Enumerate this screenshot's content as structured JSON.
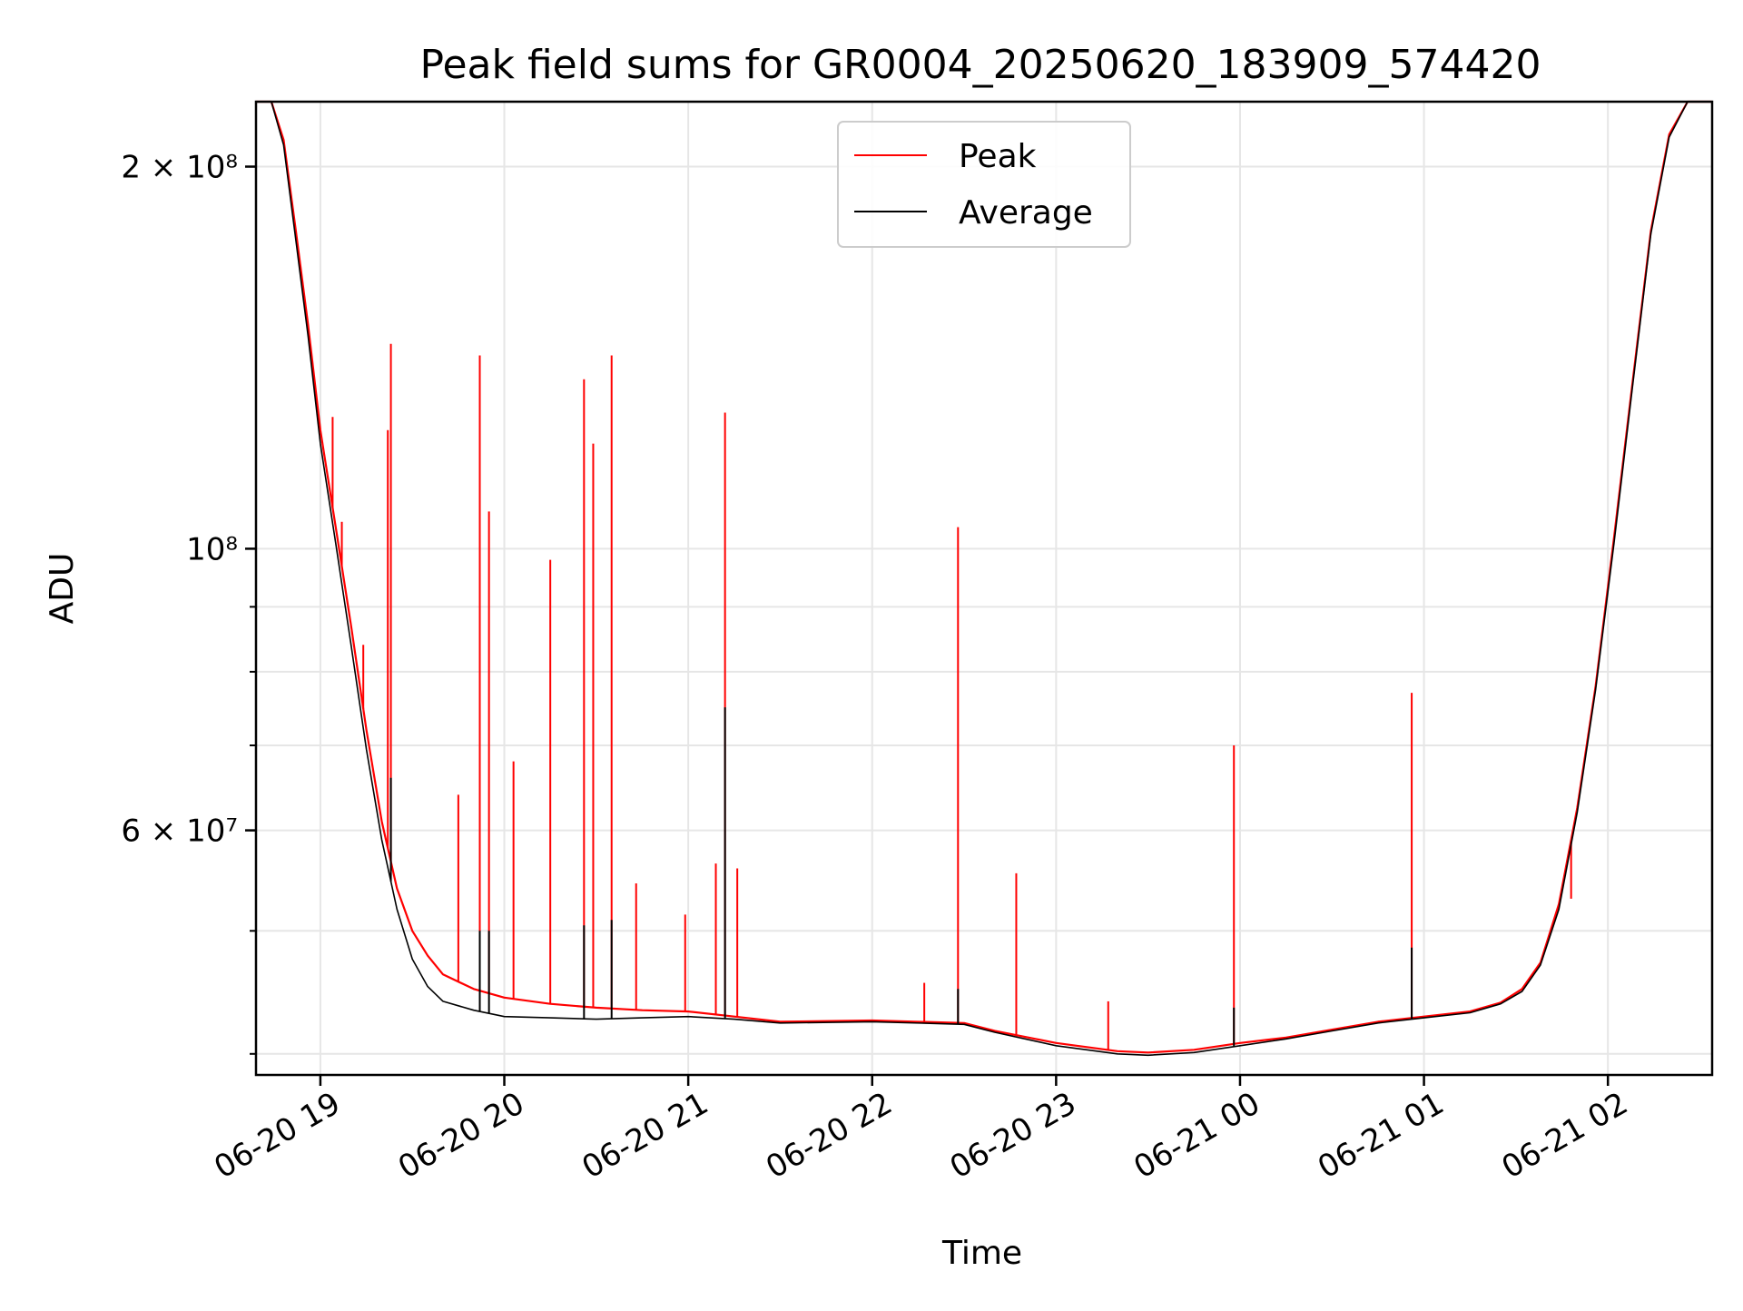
{
  "chart_data": {
    "type": "line",
    "title": "Peak field sums for GR0004_20250620_183909_574420",
    "xlabel": "Time",
    "ylabel": "ADU",
    "y_scale": "log",
    "ylim": [
      38500000,
      225000000
    ],
    "xlim": [
      "06-20 18:39",
      "06-21 02:34"
    ],
    "grid": true,
    "legend_position": "upper center",
    "x_ticks": [
      {
        "value": "06-20 19:00",
        "label": "06-20 19"
      },
      {
        "value": "06-20 20:00",
        "label": "06-20 20"
      },
      {
        "value": "06-20 21:00",
        "label": "06-20 21"
      },
      {
        "value": "06-20 22:00",
        "label": "06-20 22"
      },
      {
        "value": "06-20 23:00",
        "label": "06-20 23"
      },
      {
        "value": "06-21 00:00",
        "label": "06-21 00"
      },
      {
        "value": "06-21 01:00",
        "label": "06-21 01"
      },
      {
        "value": "06-21 02:00",
        "label": "06-21 02"
      }
    ],
    "y_ticks": [
      {
        "value": 200000000,
        "label": "2 × 10⁸"
      },
      {
        "value": 100000000,
        "label": "10⁸"
      },
      {
        "value": 60000000,
        "label": "6 × 10⁷"
      }
    ],
    "y_minor_ticks": [
      40000000,
      50000000,
      60000000,
      70000000,
      80000000,
      90000000,
      100000000,
      200000000
    ],
    "series": [
      {
        "name": "Peak",
        "color": "#ff0000",
        "x": [
          "06-20 18:39",
          "06-20 18:44",
          "06-20 18:48",
          "06-20 18:52",
          "06-20 18:56",
          "06-20 19:00",
          "06-20 19:05",
          "06-20 19:10",
          "06-20 19:15",
          "06-20 19:20",
          "06-20 19:25",
          "06-20 19:30",
          "06-20 19:35",
          "06-20 19:40",
          "06-20 19:50",
          "06-20 20:00",
          "06-20 20:15",
          "06-20 20:30",
          "06-20 20:45",
          "06-20 21:00",
          "06-20 21:15",
          "06-20 21:30",
          "06-20 22:00",
          "06-20 22:30",
          "06-20 22:40",
          "06-20 23:00",
          "06-20 23:20",
          "06-20 23:30",
          "06-20 23:45",
          "06-21 00:00",
          "06-21 00:15",
          "06-21 00:30",
          "06-21 00:45",
          "06-21 01:00",
          "06-21 01:15",
          "06-21 01:25",
          "06-21 01:32",
          "06-21 01:38",
          "06-21 01:44",
          "06-21 01:50",
          "06-21 01:56",
          "06-21 02:02",
          "06-21 02:08",
          "06-21 02:14",
          "06-21 02:20",
          "06-21 02:26",
          "06-21 02:34"
        ],
        "values": [
          225000000,
          225000000,
          210000000,
          178000000,
          150000000,
          124000000,
          104000000,
          87000000,
          72000000,
          61000000,
          54000000,
          50000000,
          47800000,
          46200000,
          45000000,
          44300000,
          43800000,
          43500000,
          43300000,
          43200000,
          42800000,
          42400000,
          42500000,
          42300000,
          41700000,
          40800000,
          40200000,
          40100000,
          40300000,
          40800000,
          41200000,
          41800000,
          42400000,
          42800000,
          43200000,
          43900000,
          45000000,
          47200000,
          52500000,
          62500000,
          78000000,
          102000000,
          135000000,
          178000000,
          212000000,
          225000000,
          225000000
        ],
        "spikes": [
          {
            "x": "06-20 19:04",
            "value": 127000000
          },
          {
            "x": "06-20 19:07",
            "value": 105000000
          },
          {
            "x": "06-20 19:14",
            "value": 84000000
          },
          {
            "x": "06-20 19:22",
            "value": 124000000
          },
          {
            "x": "06-20 19:23",
            "value": 145000000
          },
          {
            "x": "06-20 19:45",
            "value": 64000000
          },
          {
            "x": "06-20 19:52",
            "value": 142000000
          },
          {
            "x": "06-20 19:55",
            "value": 107000000
          },
          {
            "x": "06-20 20:03",
            "value": 68000000
          },
          {
            "x": "06-20 20:15",
            "value": 98000000
          },
          {
            "x": "06-20 20:26",
            "value": 136000000
          },
          {
            "x": "06-20 20:29",
            "value": 121000000
          },
          {
            "x": "06-20 20:35",
            "value": 142000000
          },
          {
            "x": "06-20 20:43",
            "value": 54500000
          },
          {
            "x": "06-20 20:59",
            "value": 51500000
          },
          {
            "x": "06-20 21:09",
            "value": 56500000
          },
          {
            "x": "06-20 21:12",
            "value": 128000000
          },
          {
            "x": "06-20 21:16",
            "value": 56000000
          },
          {
            "x": "06-20 22:17",
            "value": 45500000
          },
          {
            "x": "06-20 22:28",
            "value": 104000000
          },
          {
            "x": "06-20 22:47",
            "value": 55500000
          },
          {
            "x": "06-20 23:17",
            "value": 44000000
          },
          {
            "x": "06-20 23:58",
            "value": 70000000
          },
          {
            "x": "06-21 00:56",
            "value": 77000000
          },
          {
            "x": "06-21 01:48",
            "value": 53000000
          }
        ]
      },
      {
        "name": "Average",
        "color": "#000000",
        "x": [
          "06-20 18:39",
          "06-20 18:44",
          "06-20 18:48",
          "06-20 18:52",
          "06-20 18:56",
          "06-20 19:00",
          "06-20 19:05",
          "06-20 19:10",
          "06-20 19:15",
          "06-20 19:20",
          "06-20 19:25",
          "06-20 19:30",
          "06-20 19:35",
          "06-20 19:40",
          "06-20 19:50",
          "06-20 20:00",
          "06-20 20:15",
          "06-20 20:30",
          "06-20 20:45",
          "06-20 21:00",
          "06-20 21:15",
          "06-20 21:30",
          "06-20 22:00",
          "06-20 22:30",
          "06-20 22:40",
          "06-20 23:00",
          "06-20 23:20",
          "06-20 23:30",
          "06-20 23:45",
          "06-21 00:00",
          "06-21 00:15",
          "06-21 00:30",
          "06-21 00:45",
          "06-21 01:00",
          "06-21 01:15",
          "06-21 01:25",
          "06-21 01:32",
          "06-21 01:38",
          "06-21 01:44",
          "06-21 01:50",
          "06-21 01:56",
          "06-21 02:02",
          "06-21 02:08",
          "06-21 02:14",
          "06-21 02:20",
          "06-21 02:26",
          "06-21 02:34"
        ],
        "values": [
          225000000,
          225000000,
          208000000,
          175000000,
          147000000,
          121000000,
          101000000,
          84000000,
          69500000,
          59000000,
          52000000,
          47500000,
          45200000,
          44000000,
          43300000,
          42800000,
          42700000,
          42600000,
          42700000,
          42800000,
          42600000,
          42300000,
          42400000,
          42200000,
          41600000,
          40600000,
          40000000,
          39900000,
          40100000,
          40600000,
          41100000,
          41700000,
          42300000,
          42700000,
          43100000,
          43800000,
          44800000,
          47000000,
          52000000,
          62000000,
          77500000,
          101000000,
          134000000,
          177000000,
          211000000,
          225000000,
          225000000
        ],
        "spikes": [
          {
            "x": "06-20 19:23",
            "value": 66000000
          },
          {
            "x": "06-20 19:52",
            "value": 50000000
          },
          {
            "x": "06-20 19:55",
            "value": 50000000
          },
          {
            "x": "06-20 20:26",
            "value": 50500000
          },
          {
            "x": "06-20 20:35",
            "value": 51000000
          },
          {
            "x": "06-20 21:12",
            "value": 75000000
          },
          {
            "x": "06-20 22:28",
            "value": 45000000
          },
          {
            "x": "06-20 23:58",
            "value": 43500000
          },
          {
            "x": "06-21 00:56",
            "value": 48500000
          }
        ]
      }
    ],
    "legend": [
      {
        "label": "Peak",
        "color": "#ff0000"
      },
      {
        "label": "Average",
        "color": "#000000"
      }
    ]
  }
}
